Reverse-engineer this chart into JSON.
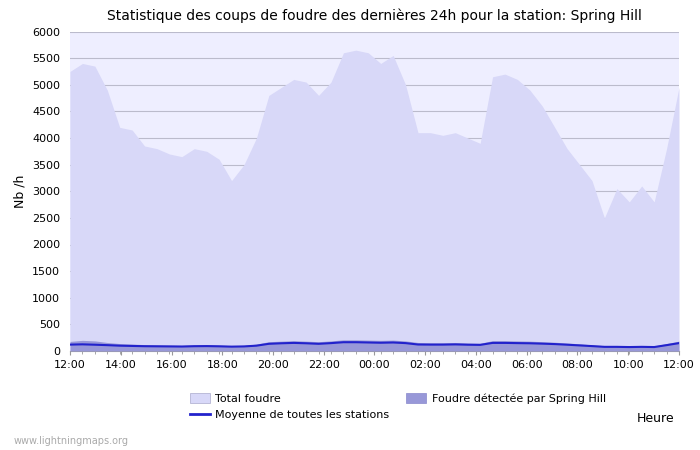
{
  "title": "Statistique des coups de foudre des dernières 24h pour la station: Spring Hill",
  "xlabel": "Heure",
  "ylabel": "Nb /h",
  "ylim": [
    0,
    6000
  ],
  "yticks": [
    0,
    500,
    1000,
    1500,
    2000,
    2500,
    3000,
    3500,
    4000,
    4500,
    5000,
    5500,
    6000
  ],
  "xtick_labels": [
    "12:00",
    "14:00",
    "16:00",
    "18:00",
    "20:00",
    "22:00",
    "00:00",
    "02:00",
    "04:00",
    "06:00",
    "08:00",
    "10:00",
    "12:00"
  ],
  "bg_color": "#ffffff",
  "plot_bg_color": "#eeeeff",
  "grid_color": "#bbbbcc",
  "fill_total_color": "#d8d8f8",
  "fill_local_color": "#9898d8",
  "line_avg_color": "#2222cc",
  "watermark": "www.lightningmaps.org",
  "total_foudre": [
    5250,
    5400,
    5350,
    4900,
    4200,
    4150,
    3850,
    3800,
    3700,
    3650,
    3800,
    3750,
    3600,
    3200,
    3500,
    4000,
    4800,
    4950,
    5100,
    5050,
    4800,
    5050,
    5600,
    5650,
    5600,
    5400,
    5550,
    5000,
    4100,
    4100,
    4050,
    4100,
    4000,
    3900,
    5150,
    5200,
    5100,
    4900,
    4600,
    4200,
    3800,
    3500,
    3200,
    2500,
    3050,
    2800,
    3100,
    2800,
    3800,
    4950
  ],
  "local_foudre": [
    180,
    200,
    190,
    160,
    140,
    130,
    120,
    115,
    110,
    105,
    115,
    120,
    110,
    100,
    105,
    130,
    175,
    185,
    195,
    185,
    175,
    190,
    210,
    210,
    205,
    200,
    205,
    190,
    160,
    155,
    155,
    160,
    150,
    145,
    195,
    195,
    190,
    185,
    175,
    165,
    150,
    135,
    115,
    100,
    100,
    95,
    100,
    95,
    140,
    185
  ],
  "avg_foudre": [
    120,
    125,
    118,
    110,
    100,
    95,
    90,
    88,
    86,
    84,
    90,
    92,
    88,
    82,
    86,
    100,
    135,
    145,
    152,
    145,
    135,
    148,
    165,
    165,
    160,
    155,
    160,
    148,
    122,
    120,
    120,
    124,
    118,
    115,
    152,
    152,
    148,
    145,
    138,
    130,
    118,
    105,
    92,
    78,
    78,
    74,
    78,
    74,
    110,
    148
  ]
}
